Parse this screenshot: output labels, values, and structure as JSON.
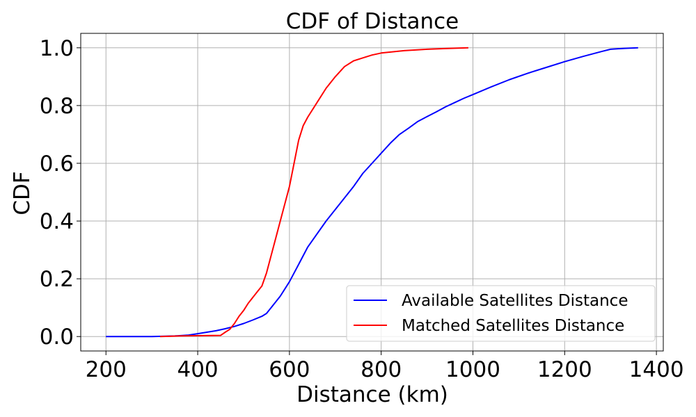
{
  "chart_data": {
    "type": "line",
    "title": "CDF of Distance",
    "xlabel": "Distance (km)",
    "ylabel": "CDF",
    "xlim": [
      145,
      1415
    ],
    "ylim": [
      -0.05,
      1.05
    ],
    "x_ticks": [
      200,
      400,
      600,
      800,
      1000,
      1200,
      1400
    ],
    "y_ticks": [
      0.0,
      0.2,
      0.4,
      0.6,
      0.8,
      1.0
    ],
    "x_tick_labels": [
      "200",
      "400",
      "600",
      "800",
      "1000",
      "1200",
      "1400"
    ],
    "y_tick_labels": [
      "0.0",
      "0.2",
      "0.4",
      "0.6",
      "0.8",
      "1.0"
    ],
    "grid": true,
    "legend_position": "lower-right",
    "series": [
      {
        "name": "Available Satellites Distance",
        "color": "#0000ff",
        "points": [
          [
            200,
            0.0
          ],
          [
            300,
            0.0
          ],
          [
            350,
            0.002
          ],
          [
            380,
            0.005
          ],
          [
            400,
            0.01
          ],
          [
            420,
            0.015
          ],
          [
            440,
            0.02
          ],
          [
            460,
            0.027
          ],
          [
            480,
            0.035
          ],
          [
            500,
            0.045
          ],
          [
            520,
            0.057
          ],
          [
            540,
            0.07
          ],
          [
            550,
            0.08
          ],
          [
            560,
            0.1
          ],
          [
            580,
            0.14
          ],
          [
            600,
            0.19
          ],
          [
            620,
            0.25
          ],
          [
            640,
            0.31
          ],
          [
            660,
            0.355
          ],
          [
            680,
            0.4
          ],
          [
            700,
            0.44
          ],
          [
            720,
            0.48
          ],
          [
            740,
            0.52
          ],
          [
            760,
            0.565
          ],
          [
            780,
            0.6
          ],
          [
            800,
            0.635
          ],
          [
            820,
            0.67
          ],
          [
            840,
            0.7
          ],
          [
            860,
            0.722
          ],
          [
            880,
            0.745
          ],
          [
            900,
            0.762
          ],
          [
            920,
            0.778
          ],
          [
            940,
            0.795
          ],
          [
            960,
            0.81
          ],
          [
            980,
            0.825
          ],
          [
            1000,
            0.838
          ],
          [
            1040,
            0.865
          ],
          [
            1080,
            0.89
          ],
          [
            1120,
            0.912
          ],
          [
            1160,
            0.932
          ],
          [
            1200,
            0.952
          ],
          [
            1240,
            0.97
          ],
          [
            1280,
            0.987
          ],
          [
            1300,
            0.995
          ],
          [
            1330,
            0.998
          ],
          [
            1360,
            1.0
          ]
        ]
      },
      {
        "name": "Matched Satellites Distance",
        "color": "#ff0000",
        "points": [
          [
            318,
            0.0
          ],
          [
            360,
            0.002
          ],
          [
            400,
            0.003
          ],
          [
            450,
            0.004
          ],
          [
            460,
            0.015
          ],
          [
            470,
            0.025
          ],
          [
            480,
            0.045
          ],
          [
            490,
            0.07
          ],
          [
            500,
            0.09
          ],
          [
            510,
            0.115
          ],
          [
            520,
            0.135
          ],
          [
            530,
            0.155
          ],
          [
            540,
            0.175
          ],
          [
            550,
            0.22
          ],
          [
            560,
            0.28
          ],
          [
            570,
            0.34
          ],
          [
            580,
            0.4
          ],
          [
            590,
            0.46
          ],
          [
            600,
            0.52
          ],
          [
            610,
            0.6
          ],
          [
            620,
            0.68
          ],
          [
            630,
            0.73
          ],
          [
            640,
            0.76
          ],
          [
            660,
            0.81
          ],
          [
            680,
            0.86
          ],
          [
            700,
            0.9
          ],
          [
            720,
            0.935
          ],
          [
            740,
            0.955
          ],
          [
            760,
            0.965
          ],
          [
            780,
            0.975
          ],
          [
            800,
            0.982
          ],
          [
            850,
            0.99
          ],
          [
            900,
            0.995
          ],
          [
            950,
            0.998
          ],
          [
            990,
            1.0
          ]
        ]
      }
    ]
  }
}
